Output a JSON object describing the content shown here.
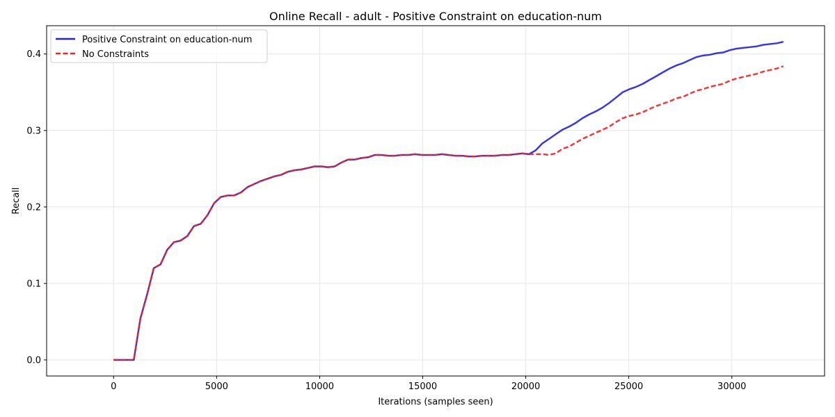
{
  "chart_data": {
    "type": "line",
    "title": "Online Recall - adult - Positive Constraint on education-num",
    "xlabel": "Iterations (samples seen)",
    "ylabel": "Recall",
    "xlim": [
      -3250,
      34500
    ],
    "ylim": [
      -0.021,
      0.437
    ],
    "xticks": [
      0,
      5000,
      10000,
      15000,
      20000,
      25000,
      30000
    ],
    "xtick_labels": [
      "0",
      "5000",
      "10000",
      "15000",
      "20000",
      "25000",
      "30000"
    ],
    "yticks": [
      0.0,
      0.1,
      0.2,
      0.3,
      0.4
    ],
    "ytick_labels": [
      "0.0",
      "0.1",
      "0.2",
      "0.3",
      "0.4"
    ],
    "grid": true,
    "legend_position": "upper-left",
    "series": [
      {
        "name": "Positive Constraint on education-num",
        "color": "#2222dd",
        "style": "solid",
        "points": [
          [
            0,
            0.0
          ],
          [
            330,
            0.0
          ],
          [
            650,
            0.0
          ],
          [
            980,
            0.0
          ],
          [
            1300,
            0.054
          ],
          [
            1630,
            0.086
          ],
          [
            1950,
            0.12
          ],
          [
            2280,
            0.125
          ],
          [
            2600,
            0.144
          ],
          [
            2930,
            0.154
          ],
          [
            3250,
            0.156
          ],
          [
            3580,
            0.162
          ],
          [
            3900,
            0.175
          ],
          [
            4230,
            0.178
          ],
          [
            4550,
            0.189
          ],
          [
            4880,
            0.205
          ],
          [
            5200,
            0.213
          ],
          [
            5530,
            0.215
          ],
          [
            5850,
            0.215
          ],
          [
            6180,
            0.219
          ],
          [
            6500,
            0.226
          ],
          [
            6830,
            0.23
          ],
          [
            7150,
            0.234
          ],
          [
            7480,
            0.237
          ],
          [
            7800,
            0.24
          ],
          [
            8130,
            0.242
          ],
          [
            8450,
            0.246
          ],
          [
            8780,
            0.248
          ],
          [
            9100,
            0.249
          ],
          [
            9430,
            0.251
          ],
          [
            9750,
            0.253
          ],
          [
            10080,
            0.253
          ],
          [
            10400,
            0.252
          ],
          [
            10730,
            0.253
          ],
          [
            11050,
            0.258
          ],
          [
            11380,
            0.262
          ],
          [
            11700,
            0.262
          ],
          [
            12030,
            0.264
          ],
          [
            12350,
            0.265
          ],
          [
            12680,
            0.268
          ],
          [
            13000,
            0.268
          ],
          [
            13330,
            0.267
          ],
          [
            13650,
            0.267
          ],
          [
            13980,
            0.268
          ],
          [
            14300,
            0.268
          ],
          [
            14630,
            0.269
          ],
          [
            14950,
            0.268
          ],
          [
            15280,
            0.268
          ],
          [
            15600,
            0.268
          ],
          [
            15930,
            0.269
          ],
          [
            16250,
            0.268
          ],
          [
            16580,
            0.267
          ],
          [
            16900,
            0.267
          ],
          [
            17230,
            0.266
          ],
          [
            17550,
            0.266
          ],
          [
            17880,
            0.267
          ],
          [
            18200,
            0.267
          ],
          [
            18530,
            0.267
          ],
          [
            18850,
            0.268
          ],
          [
            19180,
            0.268
          ],
          [
            19500,
            0.269
          ],
          [
            19830,
            0.27
          ],
          [
            20150,
            0.269
          ],
          [
            20480,
            0.274
          ],
          [
            20800,
            0.283
          ],
          [
            21130,
            0.289
          ],
          [
            21450,
            0.295
          ],
          [
            21780,
            0.301
          ],
          [
            22100,
            0.305
          ],
          [
            22430,
            0.31
          ],
          [
            22750,
            0.316
          ],
          [
            23080,
            0.321
          ],
          [
            23400,
            0.325
          ],
          [
            23730,
            0.33
          ],
          [
            24050,
            0.336
          ],
          [
            24380,
            0.343
          ],
          [
            24700,
            0.35
          ],
          [
            25030,
            0.354
          ],
          [
            25350,
            0.357
          ],
          [
            25680,
            0.361
          ],
          [
            26000,
            0.366
          ],
          [
            26330,
            0.371
          ],
          [
            26650,
            0.376
          ],
          [
            26980,
            0.381
          ],
          [
            27300,
            0.385
          ],
          [
            27630,
            0.388
          ],
          [
            27950,
            0.392
          ],
          [
            28280,
            0.396
          ],
          [
            28600,
            0.398
          ],
          [
            28930,
            0.399
          ],
          [
            29250,
            0.401
          ],
          [
            29580,
            0.402
          ],
          [
            29900,
            0.405
          ],
          [
            30230,
            0.407
          ],
          [
            30550,
            0.408
          ],
          [
            30880,
            0.409
          ],
          [
            31200,
            0.41
          ],
          [
            31530,
            0.412
          ],
          [
            31850,
            0.413
          ],
          [
            32180,
            0.414
          ],
          [
            32500,
            0.416
          ]
        ]
      },
      {
        "name": "No Constraints",
        "color": "#ee2222",
        "style": "dashed",
        "points": [
          [
            0,
            0.0
          ],
          [
            330,
            0.0
          ],
          [
            650,
            0.0
          ],
          [
            980,
            0.0
          ],
          [
            1300,
            0.054
          ],
          [
            1630,
            0.086
          ],
          [
            1950,
            0.12
          ],
          [
            2280,
            0.125
          ],
          [
            2600,
            0.144
          ],
          [
            2930,
            0.154
          ],
          [
            3250,
            0.156
          ],
          [
            3580,
            0.162
          ],
          [
            3900,
            0.175
          ],
          [
            4230,
            0.178
          ],
          [
            4550,
            0.189
          ],
          [
            4880,
            0.205
          ],
          [
            5200,
            0.213
          ],
          [
            5530,
            0.215
          ],
          [
            5850,
            0.215
          ],
          [
            6180,
            0.219
          ],
          [
            6500,
            0.226
          ],
          [
            6830,
            0.23
          ],
          [
            7150,
            0.234
          ],
          [
            7480,
            0.237
          ],
          [
            7800,
            0.24
          ],
          [
            8130,
            0.242
          ],
          [
            8450,
            0.246
          ],
          [
            8780,
            0.248
          ],
          [
            9100,
            0.249
          ],
          [
            9430,
            0.251
          ],
          [
            9750,
            0.253
          ],
          [
            10080,
            0.253
          ],
          [
            10400,
            0.252
          ],
          [
            10730,
            0.253
          ],
          [
            11050,
            0.258
          ],
          [
            11380,
            0.262
          ],
          [
            11700,
            0.262
          ],
          [
            12030,
            0.264
          ],
          [
            12350,
            0.265
          ],
          [
            12680,
            0.268
          ],
          [
            13000,
            0.268
          ],
          [
            13330,
            0.267
          ],
          [
            13650,
            0.267
          ],
          [
            13980,
            0.268
          ],
          [
            14300,
            0.268
          ],
          [
            14630,
            0.269
          ],
          [
            14950,
            0.268
          ],
          [
            15280,
            0.268
          ],
          [
            15600,
            0.268
          ],
          [
            15930,
            0.269
          ],
          [
            16250,
            0.268
          ],
          [
            16580,
            0.267
          ],
          [
            16900,
            0.267
          ],
          [
            17230,
            0.266
          ],
          [
            17550,
            0.266
          ],
          [
            17880,
            0.267
          ],
          [
            18200,
            0.267
          ],
          [
            18530,
            0.267
          ],
          [
            18850,
            0.268
          ],
          [
            19180,
            0.268
          ],
          [
            19500,
            0.269
          ],
          [
            19830,
            0.27
          ],
          [
            20150,
            0.269
          ],
          [
            20480,
            0.269
          ],
          [
            20800,
            0.269
          ],
          [
            21130,
            0.268
          ],
          [
            21450,
            0.27
          ],
          [
            21780,
            0.276
          ],
          [
            22100,
            0.279
          ],
          [
            22430,
            0.284
          ],
          [
            22750,
            0.289
          ],
          [
            23080,
            0.293
          ],
          [
            23400,
            0.297
          ],
          [
            23730,
            0.301
          ],
          [
            24050,
            0.305
          ],
          [
            24380,
            0.311
          ],
          [
            24700,
            0.316
          ],
          [
            25030,
            0.319
          ],
          [
            25350,
            0.321
          ],
          [
            25680,
            0.324
          ],
          [
            26000,
            0.328
          ],
          [
            26330,
            0.332
          ],
          [
            26650,
            0.335
          ],
          [
            26980,
            0.338
          ],
          [
            27300,
            0.342
          ],
          [
            27630,
            0.344
          ],
          [
            27950,
            0.348
          ],
          [
            28280,
            0.352
          ],
          [
            28600,
            0.354
          ],
          [
            28930,
            0.357
          ],
          [
            29250,
            0.359
          ],
          [
            29580,
            0.361
          ],
          [
            29900,
            0.365
          ],
          [
            30230,
            0.368
          ],
          [
            30550,
            0.37
          ],
          [
            30880,
            0.372
          ],
          [
            31200,
            0.374
          ],
          [
            31530,
            0.377
          ],
          [
            31850,
            0.379
          ],
          [
            32180,
            0.381
          ],
          [
            32500,
            0.384
          ]
        ]
      }
    ]
  }
}
